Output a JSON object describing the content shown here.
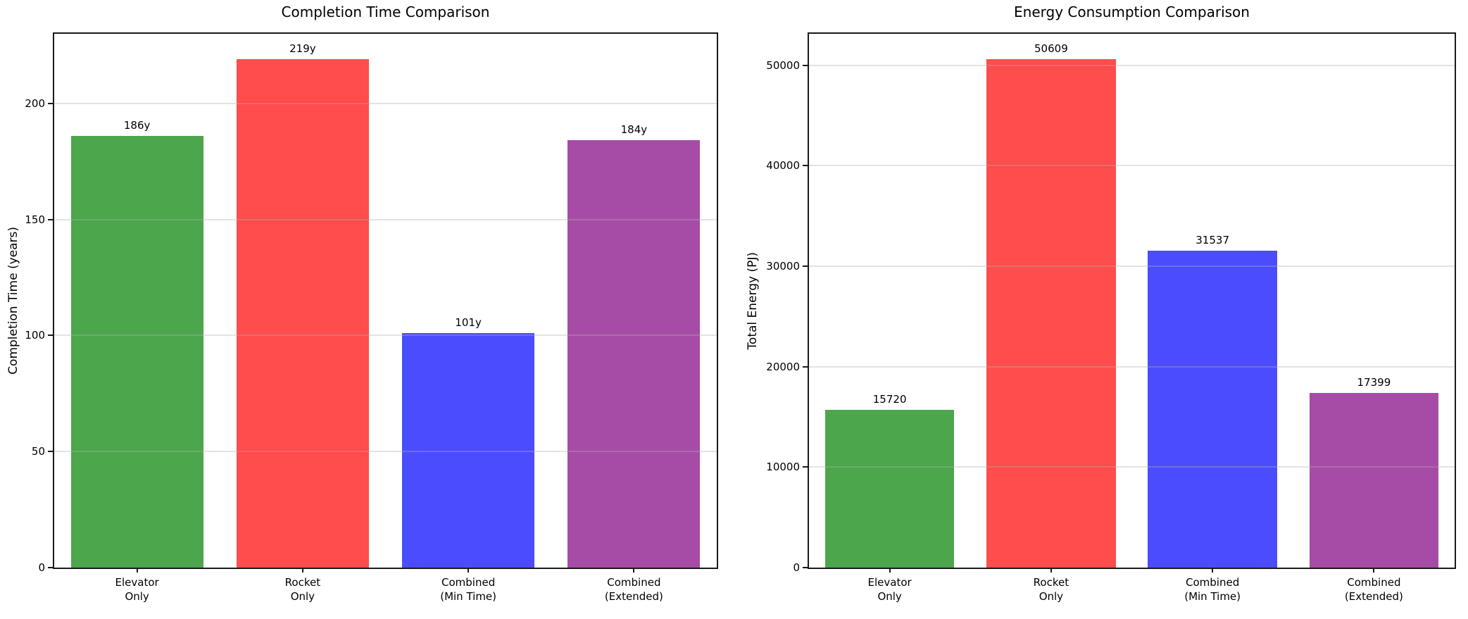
{
  "figure": {
    "background": "#ffffff",
    "spine_color": "#1a1a1a",
    "grid_color_rgba": "rgba(176,176,176,0.35)"
  },
  "chart_data": [
    {
      "type": "bar",
      "title": "Completion Time Comparison",
      "xlabel": "",
      "ylabel": "Completion Time (years)",
      "categories": [
        [
          "Elevator",
          "Only"
        ],
        [
          "Rocket",
          "Only"
        ],
        [
          "Combined",
          "(Min Time)"
        ],
        [
          "Combined",
          "(Extended)"
        ]
      ],
      "values": [
        186,
        219,
        101,
        184
      ],
      "bar_labels": [
        "186y",
        "219y",
        "101y",
        "184y"
      ],
      "bar_colors": [
        "#4CA64C",
        "#FF4C4C",
        "#4C4CFF",
        "#A64CA6"
      ],
      "yticks": [
        0,
        50,
        100,
        150,
        200
      ],
      "ylim": [
        0,
        229.95
      ],
      "grid": "horizontal",
      "legend": "none"
    },
    {
      "type": "bar",
      "title": "Energy Consumption Comparison",
      "xlabel": "",
      "ylabel": "Total Energy (PJ)",
      "categories": [
        [
          "Elevator",
          "Only"
        ],
        [
          "Rocket",
          "Only"
        ],
        [
          "Combined",
          "(Min Time)"
        ],
        [
          "Combined",
          "(Extended)"
        ]
      ],
      "values": [
        15720,
        50609,
        31537,
        17399
      ],
      "bar_labels": [
        "15720",
        "50609",
        "31537",
        "17399"
      ],
      "bar_colors": [
        "#4CA64C",
        "#FF4C4C",
        "#4C4CFF",
        "#A64CA6"
      ],
      "yticks": [
        0,
        10000,
        20000,
        30000,
        40000,
        50000
      ],
      "ylim": [
        0,
        53139
      ],
      "grid": "horizontal",
      "legend": "none"
    }
  ]
}
